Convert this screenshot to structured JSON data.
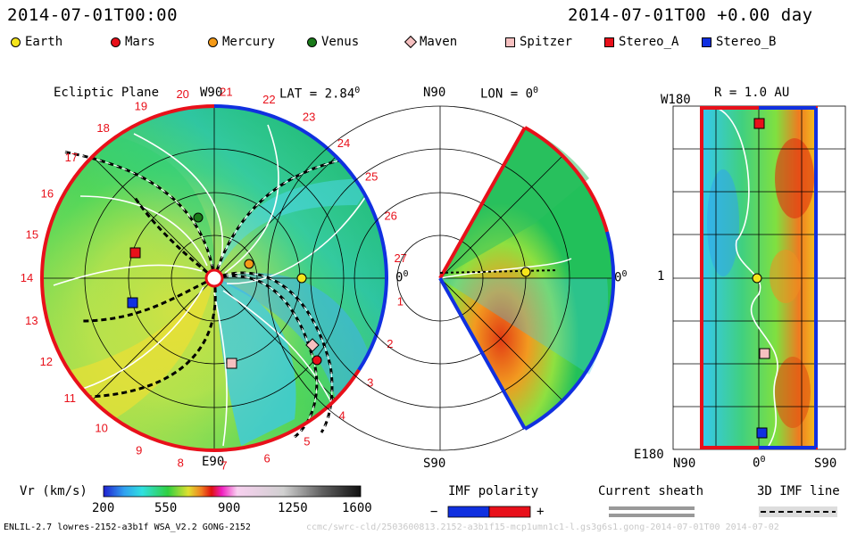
{
  "header": {
    "datetime_left": "2014-07-01T00:00",
    "datetime_right": "2014-07-01T00 +0.00 day"
  },
  "objects": [
    {
      "name": "Earth",
      "shape": "circle",
      "color": "#f5e51b"
    },
    {
      "name": "Mars",
      "shape": "circle",
      "color": "#e8101a"
    },
    {
      "name": "Mercury",
      "shape": "circle",
      "color": "#f59a17"
    },
    {
      "name": "Venus",
      "shape": "circle",
      "color": "#1a7a1a"
    },
    {
      "name": "Maven",
      "shape": "diamond",
      "color": "#f6c0c0"
    },
    {
      "name": "Spitzer",
      "shape": "square",
      "color": "#f6c0c0"
    },
    {
      "name": "Stereo_A",
      "shape": "square",
      "color": "#e8101a"
    },
    {
      "name": "Stereo_B",
      "shape": "square",
      "color": "#1030e0"
    }
  ],
  "ecliptic": {
    "title": "Ecliptic Plane",
    "top_label": "W90",
    "bottom_label": "E90",
    "right_label": "0",
    "lat_label": "LAT = 2.84",
    "ticks": [
      "1",
      "2",
      "3",
      "4",
      "5",
      "6",
      "7",
      "8",
      "9",
      "10",
      "11",
      "12",
      "13",
      "14",
      "15",
      "16",
      "17",
      "18",
      "19",
      "20",
      "21",
      "22",
      "23",
      "24",
      "25",
      "26",
      "27"
    ]
  },
  "meridional": {
    "top_label": "N90",
    "bottom_label": "S90",
    "lon_label": "LON = 0",
    "right_label": "0"
  },
  "radial": {
    "r_label": "R = 1.0 AU",
    "top_left": "W180",
    "mid_left": "1",
    "bottom_left": "E180",
    "bottom_n": "N90",
    "bottom_mid": "0",
    "bottom_s": "S90"
  },
  "colorbar": {
    "label": "Vr (km/s)",
    "ticks": [
      "200",
      "550",
      "900",
      "1250",
      "1600"
    ]
  },
  "imf": {
    "title": "IMF polarity",
    "minus": "−",
    "plus": "+"
  },
  "current_sheath": {
    "title": "Current sheath"
  },
  "imf_line": {
    "title": "3D IMF line"
  },
  "footer": {
    "model_info": "ENLIL-2.7 lowres-2152-a3b1f WSA_V2.2 GONG-2152",
    "watermark": "ccmc/swrc-cld/2503600813.2152-a3b1f15-mcp1umn1c1-l.gs3g6s1.gong-2014-07-01T00   2014-07-02"
  },
  "chart_data": {
    "type": "heatmap",
    "title": "",
    "variable": "Vr (km/s)",
    "range": [
      200,
      1600
    ],
    "colorbar_ticks": [
      200,
      550,
      900,
      1250,
      1600
    ],
    "panels": [
      "Ecliptic Plane",
      "LON = 0",
      "R = 1.0 AU"
    ]
  }
}
